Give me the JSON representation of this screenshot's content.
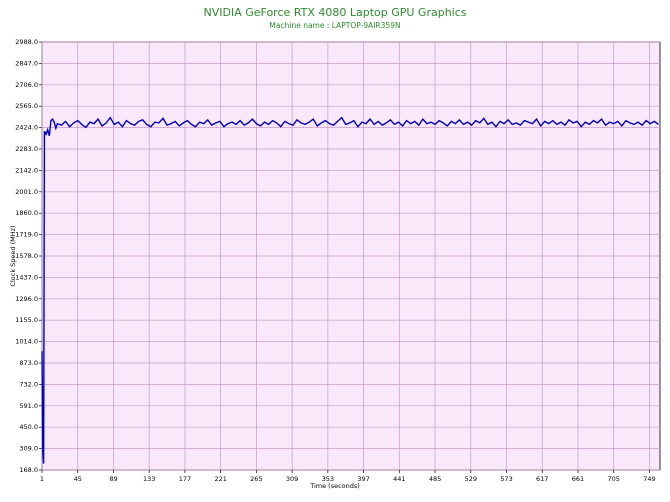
{
  "chart_data": {
    "type": "line",
    "title": "NVIDIA GeForce RTX 4080 Laptop GPU Graphics",
    "subtitle": "Machine name : LAPTOP-9AIR359N",
    "x_label": "Time (seconds)",
    "y_label": "Clock Speed (MHz)",
    "xlim": [
      1,
      762
    ],
    "ylim": [
      168,
      2988
    ],
    "xticks": [
      1,
      45,
      89,
      133,
      177,
      221,
      265,
      309,
      353,
      397,
      441,
      485,
      529,
      573,
      617,
      661,
      705,
      749
    ],
    "yticks": [
      {
        "value": 168,
        "label": "168.0"
      },
      {
        "value": 309,
        "label": "309.0"
      },
      {
        "value": 450,
        "label": "450.0"
      },
      {
        "value": 591,
        "label": "591.0"
      },
      {
        "value": 732,
        "label": "732.0"
      },
      {
        "value": 873,
        "label": "873.0"
      },
      {
        "value": 1014,
        "label": "1014.0"
      },
      {
        "value": 1155,
        "label": "1155.0"
      },
      {
        "value": 1296,
        "label": "1296.0"
      },
      {
        "value": 1437,
        "label": "1437.0"
      },
      {
        "value": 1578,
        "label": "1578.0"
      },
      {
        "value": 1719,
        "label": "1719.0"
      },
      {
        "value": 1860,
        "label": "1860.0"
      },
      {
        "value": 2001,
        "label": "2001.0"
      },
      {
        "value": 2142,
        "label": "2142.0"
      },
      {
        "value": 2283,
        "label": "2283.0"
      },
      {
        "value": 2424,
        "label": "2424.0"
      },
      {
        "value": 2565,
        "label": "2565.0"
      },
      {
        "value": 2706,
        "label": "2706.0"
      },
      {
        "value": 2847,
        "label": "2847.0"
      },
      {
        "value": 2988,
        "label": "2988.0"
      }
    ],
    "grid": true,
    "x": [
      1,
      2,
      3,
      4,
      6,
      8,
      10,
      12,
      14,
      16,
      18,
      20,
      25,
      30,
      35,
      40,
      45,
      50,
      55,
      60,
      65,
      70,
      75,
      80,
      85,
      90,
      95,
      100,
      105,
      110,
      115,
      120,
      125,
      130,
      135,
      140,
      145,
      150,
      155,
      160,
      165,
      170,
      175,
      180,
      185,
      190,
      195,
      200,
      205,
      210,
      215,
      220,
      225,
      230,
      235,
      240,
      245,
      250,
      255,
      260,
      265,
      270,
      275,
      280,
      285,
      290,
      295,
      300,
      305,
      310,
      315,
      320,
      325,
      330,
      335,
      340,
      345,
      350,
      355,
      360,
      365,
      370,
      375,
      380,
      385,
      390,
      395,
      400,
      405,
      410,
      415,
      420,
      425,
      430,
      435,
      440,
      445,
      450,
      455,
      460,
      465,
      470,
      475,
      480,
      485,
      490,
      495,
      500,
      505,
      510,
      515,
      520,
      525,
      530,
      535,
      540,
      545,
      550,
      555,
      560,
      565,
      570,
      575,
      580,
      585,
      590,
      595,
      600,
      605,
      610,
      615,
      620,
      625,
      630,
      635,
      640,
      645,
      650,
      655,
      660,
      665,
      670,
      675,
      680,
      685,
      690,
      695,
      700,
      705,
      710,
      715,
      720,
      725,
      730,
      735,
      740,
      745,
      750,
      755,
      760
    ],
    "series": [
      {
        "name": "Clock Speed",
        "color": "#0000c0",
        "values": [
          950,
          300,
          210,
          2400,
          2380,
          2410,
          2370,
          2470,
          2480,
          2460,
          2420,
          2450,
          2440,
          2465,
          2430,
          2455,
          2470,
          2445,
          2425,
          2460,
          2450,
          2480,
          2435,
          2455,
          2490,
          2445,
          2460,
          2430,
          2470,
          2450,
          2440,
          2465,
          2475,
          2445,
          2430,
          2460,
          2455,
          2485,
          2440,
          2450,
          2465,
          2435,
          2455,
          2470,
          2445,
          2430,
          2460,
          2450,
          2475,
          2440,
          2455,
          2465,
          2430,
          2450,
          2460,
          2445,
          2470,
          2440,
          2455,
          2480,
          2450,
          2435,
          2460,
          2445,
          2470,
          2455,
          2430,
          2465,
          2450,
          2440,
          2475,
          2455,
          2445,
          2460,
          2480,
          2435,
          2455,
          2470,
          2450,
          2440,
          2465,
          2490,
          2445,
          2455,
          2470,
          2430,
          2460,
          2450,
          2480,
          2445,
          2465,
          2440,
          2455,
          2475,
          2445,
          2460,
          2435,
          2470,
          2450,
          2465,
          2440,
          2480,
          2450,
          2460,
          2445,
          2470,
          2455,
          2435,
          2465,
          2450,
          2475,
          2445,
          2460,
          2440,
          2470,
          2455,
          2485,
          2445,
          2460,
          2430,
          2465,
          2450,
          2475,
          2445,
          2455,
          2440,
          2470,
          2460,
          2450,
          2480,
          2435,
          2465,
          2450,
          2470,
          2445,
          2460,
          2440,
          2475,
          2455,
          2465,
          2430,
          2460,
          2445,
          2470,
          2455,
          2480,
          2440,
          2460,
          2450,
          2465,
          2435,
          2470,
          2455,
          2445,
          2460,
          2440,
          2470,
          2450,
          2465,
          2445
        ]
      }
    ]
  }
}
